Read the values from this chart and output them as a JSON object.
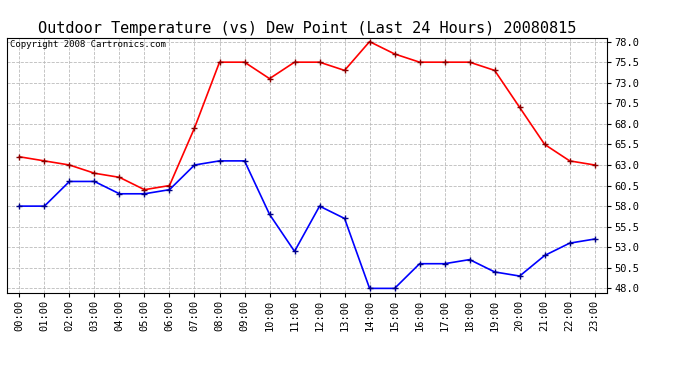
{
  "title": "Outdoor Temperature (vs) Dew Point (Last 24 Hours) 20080815",
  "copyright_text": "Copyright 2008 Cartronics.com",
  "x_labels": [
    "00:00",
    "01:00",
    "02:00",
    "03:00",
    "04:00",
    "05:00",
    "06:00",
    "07:00",
    "08:00",
    "09:00",
    "10:00",
    "11:00",
    "12:00",
    "13:00",
    "14:00",
    "15:00",
    "16:00",
    "17:00",
    "18:00",
    "19:00",
    "20:00",
    "21:00",
    "22:00",
    "23:00"
  ],
  "temp_data": [
    64.0,
    63.5,
    63.0,
    62.0,
    61.5,
    60.0,
    60.5,
    67.5,
    75.5,
    75.5,
    73.5,
    75.5,
    75.5,
    74.5,
    78.0,
    76.5,
    75.5,
    75.5,
    75.5,
    74.5,
    70.0,
    65.5,
    63.5,
    63.0
  ],
  "dew_data": [
    58.0,
    58.0,
    61.0,
    61.0,
    59.5,
    59.5,
    60.0,
    63.0,
    63.5,
    63.5,
    57.0,
    52.5,
    58.0,
    56.5,
    48.0,
    48.0,
    51.0,
    51.0,
    51.5,
    50.0,
    49.5,
    52.0,
    53.5,
    54.0
  ],
  "temp_color": "#ff0000",
  "dew_color": "#0000ff",
  "bg_color": "#ffffff",
  "plot_bg_color": "#ffffff",
  "grid_color": "#bbbbbb",
  "ylim_min": 47.5,
  "ylim_max": 78.5,
  "yticks": [
    48.0,
    50.5,
    53.0,
    55.5,
    58.0,
    60.5,
    63.0,
    65.5,
    68.0,
    70.5,
    73.0,
    75.5,
    78.0
  ],
  "title_fontsize": 11,
  "copyright_fontsize": 6.5,
  "tick_fontsize": 7.5,
  "marker": "+",
  "markersize": 5,
  "linewidth": 1.2
}
